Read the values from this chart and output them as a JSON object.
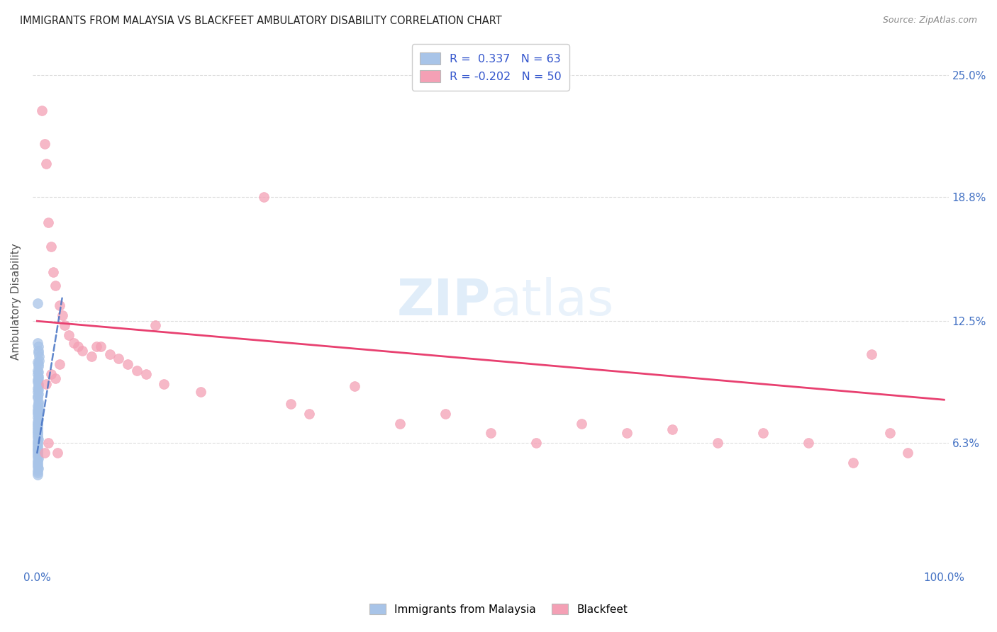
{
  "title": "IMMIGRANTS FROM MALAYSIA VS BLACKFEET AMBULATORY DISABILITY CORRELATION CHART",
  "source": "Source: ZipAtlas.com",
  "ylabel": "Ambulatory Disability",
  "ytick_labels": [
    "6.3%",
    "12.5%",
    "18.8%",
    "25.0%"
  ],
  "ytick_values": [
    0.063,
    0.125,
    0.188,
    0.25
  ],
  "r_blue": 0.337,
  "n_blue": 63,
  "r_pink": -0.202,
  "n_pink": 50,
  "legend_label_blue": "Immigrants from Malaysia",
  "legend_label_pink": "Blackfeet",
  "blue_scatter_color": "#a8c4e8",
  "pink_scatter_color": "#f4a0b5",
  "blue_line_color": "#4472c4",
  "pink_line_color": "#e84070",
  "axis_tick_color": "#4472c4",
  "title_color": "#222222",
  "source_color": "#888888",
  "grid_color": "#dddddd",
  "watermark_zip_color": "#c8dff5",
  "watermark_atlas_color": "#c8dff5",
  "blue_x": [
    0.0008,
    0.001,
    0.0012,
    0.0015,
    0.0018,
    0.002,
    0.0008,
    0.001,
    0.0012,
    0.0008,
    0.001,
    0.0008,
    0.0012,
    0.001,
    0.0008,
    0.0008,
    0.001,
    0.0012,
    0.0008,
    0.001,
    0.0008,
    0.001,
    0.0008,
    0.0008,
    0.001,
    0.0012,
    0.0008,
    0.001,
    0.0008,
    0.0008,
    0.0008,
    0.001,
    0.0008,
    0.001,
    0.0008,
    0.0008,
    0.0008,
    0.0008,
    0.0008,
    0.0008,
    0.0008,
    0.0008,
    0.0008,
    0.001,
    0.0008,
    0.0008,
    0.0008,
    0.0008,
    0.0008,
    0.0008,
    0.0008,
    0.0008,
    0.0008,
    0.001,
    0.0008,
    0.0008,
    0.0008,
    0.0008,
    0.001,
    0.0008,
    0.0008,
    0.0008,
    0.0008
  ],
  "blue_y": [
    0.114,
    0.112,
    0.11,
    0.109,
    0.107,
    0.105,
    0.104,
    0.103,
    0.102,
    0.1,
    0.099,
    0.098,
    0.097,
    0.096,
    0.095,
    0.094,
    0.093,
    0.092,
    0.091,
    0.09,
    0.089,
    0.088,
    0.087,
    0.086,
    0.084,
    0.083,
    0.082,
    0.081,
    0.08,
    0.079,
    0.078,
    0.077,
    0.076,
    0.075,
    0.074,
    0.073,
    0.072,
    0.071,
    0.07,
    0.069,
    0.068,
    0.067,
    0.066,
    0.065,
    0.064,
    0.063,
    0.062,
    0.061,
    0.06,
    0.059,
    0.058,
    0.057,
    0.056,
    0.055,
    0.054,
    0.053,
    0.052,
    0.051,
    0.05,
    0.049,
    0.048,
    0.047,
    0.134
  ],
  "pink_x": [
    0.005,
    0.008,
    0.01,
    0.012,
    0.015,
    0.018,
    0.02,
    0.025,
    0.028,
    0.03,
    0.035,
    0.04,
    0.045,
    0.05,
    0.06,
    0.065,
    0.07,
    0.08,
    0.09,
    0.1,
    0.11,
    0.12,
    0.13,
    0.14,
    0.18,
    0.25,
    0.28,
    0.3,
    0.35,
    0.4,
    0.45,
    0.5,
    0.55,
    0.6,
    0.65,
    0.7,
    0.75,
    0.8,
    0.85,
    0.9,
    0.92,
    0.94,
    0.96,
    0.01,
    0.015,
    0.02,
    0.025,
    0.008,
    0.012,
    0.022
  ],
  "pink_y": [
    0.232,
    0.215,
    0.205,
    0.175,
    0.163,
    0.15,
    0.143,
    0.133,
    0.128,
    0.123,
    0.118,
    0.114,
    0.112,
    0.11,
    0.107,
    0.112,
    0.112,
    0.108,
    0.106,
    0.103,
    0.1,
    0.098,
    0.123,
    0.093,
    0.089,
    0.188,
    0.083,
    0.078,
    0.092,
    0.073,
    0.078,
    0.068,
    0.063,
    0.073,
    0.068,
    0.07,
    0.063,
    0.068,
    0.063,
    0.053,
    0.108,
    0.068,
    0.058,
    0.093,
    0.098,
    0.096,
    0.103,
    0.058,
    0.063,
    0.058
  ],
  "blue_line_x": [
    0.0,
    0.028
  ],
  "blue_line_y": [
    0.058,
    0.138
  ],
  "pink_line_x": [
    0.0,
    1.0
  ],
  "pink_line_y": [
    0.125,
    0.085
  ],
  "xlim": [
    -0.005,
    1.005
  ],
  "ylim": [
    0.0,
    0.27
  ]
}
